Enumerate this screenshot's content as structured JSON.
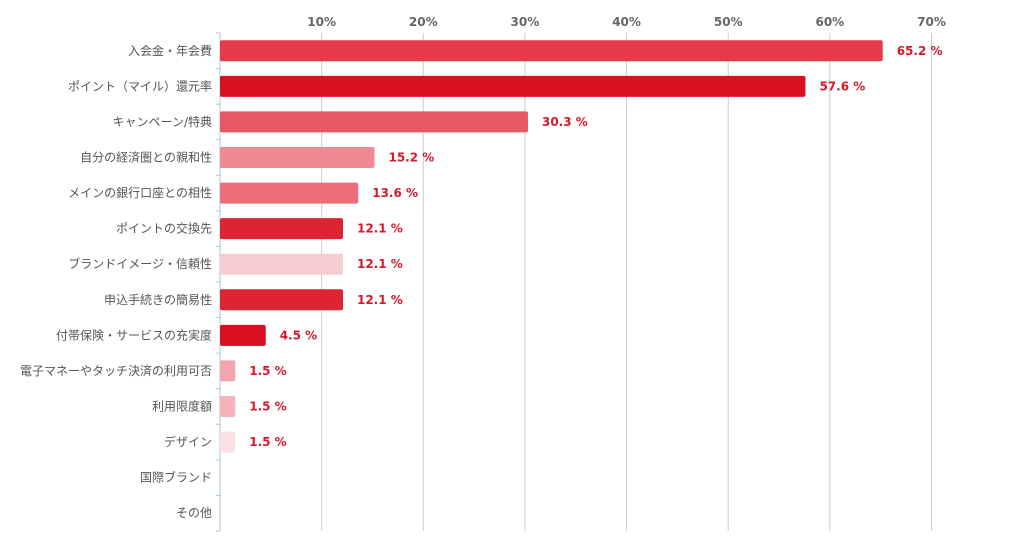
{
  "chart_data": {
    "type": "bar",
    "orientation": "horizontal",
    "title": "",
    "xlabel": "",
    "ylabel": "",
    "xlim": [
      0,
      70
    ],
    "xticks": [
      10,
      20,
      30,
      40,
      50,
      60,
      70
    ],
    "tick_suffix": "%",
    "value_suffix": " %",
    "grid": true,
    "legend": "none",
    "categories": [
      "入会金・年会費",
      "ポイント（マイル）還元率",
      "キャンペーン/特典",
      "自分の経済圏との親和性",
      "メインの銀行口座との相性",
      "ポイントの交換先",
      "ブランドイメージ・信頼性",
      "申込手続きの簡易性",
      "付帯保険・サービスの充実度",
      "電子マネーやタッチ決済の利用可否",
      "利用限度額",
      "デザイン",
      "国際ブランド",
      "その他"
    ],
    "values": [
      65.2,
      57.6,
      30.3,
      15.2,
      13.6,
      12.1,
      12.1,
      12.1,
      4.5,
      1.5,
      1.5,
      1.5,
      0,
      0
    ],
    "value_labels": [
      "65.2 %",
      "57.6 %",
      "30.3 %",
      "15.2 %",
      "13.6 %",
      "12.1 %",
      "12.1 %",
      "12.1 %",
      "4.5 %",
      "1.5 %",
      "1.5 %",
      "1.5 %",
      "",
      ""
    ],
    "colors": [
      "#e33b48",
      "#d9101f",
      "#e85763",
      "#f08a92",
      "#eb6e78",
      "#dd2432",
      "#f7cdd2",
      "#dd2432",
      "#d9101f",
      "#f2a6ad",
      "#f4b4ba",
      "#fbe1e4",
      "#ffffff",
      "#ffffff"
    ],
    "value_label_color": "#d9192a",
    "grid_color": "#cccccc",
    "axis_color": "#aac4e0"
  }
}
